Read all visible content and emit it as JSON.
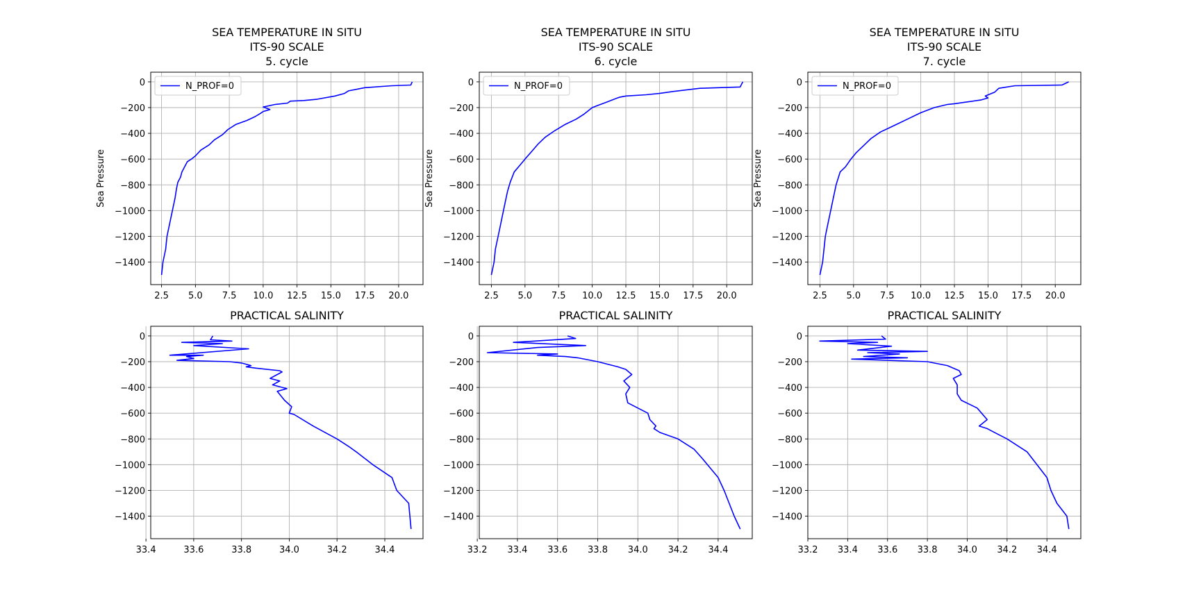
{
  "figure": {
    "background": "#ffffff",
    "line_color": "#0000ff",
    "grid_color": "#b0b0b0"
  },
  "chart_data": [
    {
      "type": "line",
      "title": "SEA TEMPERATURE IN SITU\nITS-90 SCALE\n5. cycle",
      "ylabel": "Sea Pressure",
      "xlabel": "",
      "grid": true,
      "legend": "top-left",
      "xlim": [
        1.7,
        21.8
      ],
      "ylim": [
        -1575,
        75
      ],
      "xticks": [
        2.5,
        5.0,
        7.5,
        10.0,
        12.5,
        15.0,
        17.5,
        20.0
      ],
      "xticklabels": [
        "2.5",
        "5.0",
        "7.5",
        "10.0",
        "12.5",
        "15.0",
        "17.5",
        "20.0"
      ],
      "yticks": [
        0,
        -200,
        -400,
        -600,
        -800,
        -1000,
        -1200,
        -1400
      ],
      "yticklabels": [
        "0",
        "−200",
        "−400",
        "−600",
        "−800",
        "−1000",
        "−1200",
        "−1400"
      ],
      "series": [
        {
          "name": "N_PROF=0",
          "x": [
            21.0,
            20.9,
            19.5,
            17.5,
            16.3,
            16.0,
            15.3,
            14.0,
            13.0,
            12.0,
            11.8,
            10.9,
            10.0,
            10.5,
            10.0,
            9.8,
            9.4,
            8.8,
            8.0,
            7.4,
            7.0,
            6.4,
            6.0,
            5.4,
            5.0,
            4.7,
            4.4,
            4.2,
            4.0,
            3.9,
            3.7,
            3.6,
            3.5,
            3.3,
            3.1,
            2.9,
            2.8,
            2.6,
            2.5
          ],
          "y": [
            0,
            -25,
            -30,
            -45,
            -70,
            -90,
            -110,
            -135,
            -145,
            -150,
            -165,
            -175,
            -195,
            -215,
            -230,
            -245,
            -270,
            -300,
            -330,
            -370,
            -410,
            -450,
            -490,
            -530,
            -575,
            -600,
            -620,
            -660,
            -700,
            -740,
            -780,
            -830,
            -900,
            -1000,
            -1100,
            -1200,
            -1300,
            -1400,
            -1500
          ]
        }
      ]
    },
    {
      "type": "line",
      "title": "SEA TEMPERATURE IN SITU\nITS-90 SCALE\n6. cycle",
      "ylabel": "Sea Pressure",
      "xlabel": "",
      "grid": true,
      "legend": "top-left",
      "xlim": [
        1.6,
        21.9
      ],
      "ylim": [
        -1575,
        75
      ],
      "xticks": [
        2.5,
        5.0,
        7.5,
        10.0,
        12.5,
        15.0,
        17.5,
        20.0
      ],
      "xticklabels": [
        "2.5",
        "5.0",
        "7.5",
        "10.0",
        "12.5",
        "15.0",
        "17.5",
        "20.0"
      ],
      "yticks": [
        0,
        -200,
        -400,
        -600,
        -800,
        -1000,
        -1200,
        -1400
      ],
      "yticklabels": [
        "0",
        "−200",
        "−400",
        "−600",
        "−800",
        "−1000",
        "−1200",
        "−1400"
      ],
      "series": [
        {
          "name": "N_PROF=0",
          "x": [
            21.2,
            21.0,
            18.0,
            16.0,
            15.0,
            14.0,
            12.5,
            12.0,
            11.5,
            11.0,
            10.5,
            10.0,
            9.4,
            8.8,
            8.0,
            7.2,
            6.5,
            6.0,
            5.5,
            5.0,
            4.6,
            4.2,
            3.9,
            3.7,
            3.6,
            3.4,
            3.2,
            3.0,
            2.8,
            2.7,
            2.5
          ],
          "y": [
            0,
            -40,
            -50,
            -75,
            -90,
            -100,
            -110,
            -120,
            -140,
            -160,
            -180,
            -200,
            -250,
            -290,
            -330,
            -380,
            -430,
            -480,
            -540,
            -600,
            -650,
            -700,
            -780,
            -850,
            -900,
            -1000,
            -1100,
            -1200,
            -1300,
            -1400,
            -1500
          ]
        }
      ]
    },
    {
      "type": "line",
      "title": "SEA TEMPERATURE IN SITU\nITS-90 SCALE\n7. cycle",
      "ylabel": "Sea Pressure",
      "xlabel": "",
      "grid": true,
      "legend": "top-left",
      "xlim": [
        1.6,
        21.9
      ],
      "ylim": [
        -1575,
        75
      ],
      "xticks": [
        2.5,
        5.0,
        7.5,
        10.0,
        12.5,
        15.0,
        17.5,
        20.0
      ],
      "xticklabels": [
        "2.5",
        "5.0",
        "7.5",
        "10.0",
        "12.5",
        "15.0",
        "17.5",
        "20.0"
      ],
      "yticks": [
        0,
        -200,
        -400,
        -600,
        -800,
        -1000,
        -1200,
        -1400
      ],
      "yticklabels": [
        "0",
        "−200",
        "−400",
        "−600",
        "−800",
        "−1000",
        "−1200",
        "−1400"
      ],
      "series": [
        {
          "name": "N_PROF=0",
          "x": [
            21.0,
            20.5,
            17.0,
            15.8,
            15.5,
            14.8,
            15.0,
            14.5,
            13.5,
            12.5,
            12.0,
            11.0,
            10.0,
            9.0,
            8.0,
            7.0,
            6.3,
            5.8,
            5.2,
            4.8,
            4.4,
            4.0,
            3.7,
            3.5,
            3.3,
            3.1,
            2.9,
            2.7,
            2.5
          ],
          "y": [
            0,
            -25,
            -30,
            -50,
            -80,
            -110,
            -125,
            -140,
            -155,
            -170,
            -175,
            -200,
            -240,
            -290,
            -340,
            -390,
            -440,
            -490,
            -550,
            -600,
            -660,
            -700,
            -800,
            -900,
            -1000,
            -1100,
            -1200,
            -1400,
            -1500
          ]
        }
      ]
    },
    {
      "type": "line",
      "title": "PRACTICAL SALINITY",
      "ylabel": "",
      "xlabel": "",
      "grid": true,
      "legend": "",
      "xlim": [
        33.42,
        34.56
      ],
      "ylim": [
        -1575,
        75
      ],
      "xticks": [
        33.4,
        33.6,
        33.8,
        34.0,
        34.2,
        34.4
      ],
      "xticklabels": [
        "33.4",
        "33.6",
        "33.8",
        "34.0",
        "34.2",
        "34.4"
      ],
      "yticks": [
        0,
        -200,
        -400,
        -600,
        -800,
        -1000,
        -1200,
        -1400
      ],
      "yticklabels": [
        "0",
        "−200",
        "−400",
        "−600",
        "−800",
        "−1000",
        "−1200",
        "−1400"
      ],
      "series": [
        {
          "name": "",
          "x": [
            33.68,
            33.67,
            33.76,
            33.55,
            33.72,
            33.6,
            33.83,
            33.5,
            33.64,
            33.57,
            33.6,
            33.53,
            33.75,
            33.8,
            33.84,
            33.82,
            33.86,
            33.96,
            33.97,
            33.95,
            33.92,
            33.96,
            33.93,
            33.99,
            33.95,
            33.98,
            34.01,
            34.0,
            34.02,
            34.1,
            34.2,
            34.25,
            34.28,
            34.35,
            34.43,
            34.45,
            34.5,
            34.51
          ],
          "y": [
            0,
            -30,
            -40,
            -50,
            -60,
            -75,
            -100,
            -150,
            -150,
            -160,
            -175,
            -190,
            -200,
            -210,
            -230,
            -240,
            -250,
            -270,
            -280,
            -300,
            -330,
            -350,
            -380,
            -410,
            -430,
            -500,
            -550,
            -600,
            -610,
            -700,
            -800,
            -860,
            -900,
            -1000,
            -1100,
            -1200,
            -1300,
            -1500
          ]
        }
      ]
    },
    {
      "type": "line",
      "title": "PRACTICAL SALINITY",
      "ylabel": "",
      "xlabel": "",
      "grid": true,
      "legend": "",
      "xlim": [
        33.21,
        34.57
      ],
      "ylim": [
        -1575,
        75
      ],
      "xticks": [
        33.2,
        33.4,
        33.6,
        33.8,
        34.0,
        34.2,
        34.4
      ],
      "xticklabels": [
        "33.2",
        "33.4",
        "33.6",
        "33.8",
        "34.0",
        "34.2",
        "34.4"
      ],
      "yticks": [
        0,
        -200,
        -400,
        -600,
        -800,
        -1000,
        -1200,
        -1400
      ],
      "yticklabels": [
        "0",
        "−200",
        "−400",
        "−600",
        "−800",
        "−1000",
        "−1200",
        "−1400"
      ],
      "series": [
        {
          "name": "",
          "x": [
            33.65,
            33.69,
            33.38,
            33.74,
            33.5,
            33.25,
            33.6,
            33.5,
            33.64,
            33.7,
            33.8,
            33.9,
            33.94,
            33.97,
            33.93,
            33.96,
            33.94,
            33.95,
            34.0,
            34.05,
            34.06,
            34.09,
            34.08,
            34.11,
            34.2,
            34.28,
            34.32,
            34.4,
            34.43,
            34.48,
            34.51
          ],
          "y": [
            0,
            -20,
            -50,
            -75,
            -90,
            -130,
            -140,
            -150,
            -160,
            -170,
            -200,
            -240,
            -260,
            -300,
            -350,
            -400,
            -450,
            -520,
            -560,
            -600,
            -650,
            -700,
            -720,
            -750,
            -800,
            -880,
            -950,
            -1100,
            -1200,
            -1400,
            -1500
          ]
        }
      ]
    },
    {
      "type": "line",
      "title": "PRACTICAL SALINITY",
      "ylabel": "",
      "xlabel": "",
      "grid": true,
      "legend": "",
      "xlim": [
        33.2,
        34.57
      ],
      "ylim": [
        -1575,
        75
      ],
      "xticks": [
        33.2,
        33.4,
        33.6,
        33.8,
        34.0,
        34.2,
        34.4
      ],
      "xticklabels": [
        "33.2",
        "33.4",
        "33.6",
        "33.8",
        "34.0",
        "34.2",
        "34.4"
      ],
      "yticks": [
        0,
        -200,
        -400,
        -600,
        -800,
        -1000,
        -1200,
        -1400
      ],
      "yticklabels": [
        "0",
        "−200",
        "−400",
        "−600",
        "−800",
        "−1000",
        "−1200",
        "−1400"
      ],
      "series": [
        {
          "name": "",
          "x": [
            33.57,
            33.59,
            33.26,
            33.55,
            33.4,
            33.62,
            33.45,
            33.8,
            33.5,
            33.66,
            33.48,
            33.7,
            33.42,
            33.8,
            33.9,
            33.96,
            33.97,
            33.93,
            33.95,
            33.95,
            33.97,
            34.05,
            34.1,
            34.06,
            34.1,
            34.15,
            34.2,
            34.3,
            34.4,
            34.42,
            34.45,
            34.5,
            34.51
          ],
          "y": [
            0,
            -25,
            -40,
            -50,
            -60,
            -80,
            -110,
            -120,
            -130,
            -140,
            -160,
            -170,
            -180,
            -200,
            -230,
            -270,
            -300,
            -330,
            -380,
            -450,
            -500,
            -560,
            -650,
            -700,
            -720,
            -760,
            -800,
            -900,
            -1100,
            -1200,
            -1300,
            -1400,
            -1500
          ]
        }
      ]
    }
  ]
}
